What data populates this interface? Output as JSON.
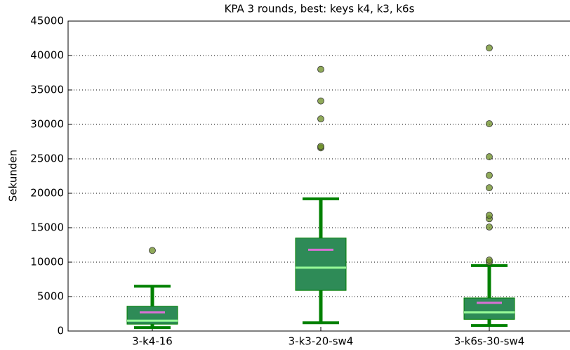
{
  "chart_data": {
    "type": "box",
    "title": "KPA 3 rounds, best: keys k4, k3, k6s",
    "ylabel": "Sekunden",
    "categories": [
      "3-k4-16",
      "3-k3-20-sw4",
      "3-k6s-30-sw4"
    ],
    "boxes": [
      {
        "whislo": 500,
        "q1": 1000,
        "med": 1500,
        "q3": 3600,
        "whishi": 6500,
        "mean": 2700,
        "fliers": [
          11700
        ]
      },
      {
        "whislo": 1200,
        "q1": 5900,
        "med": 9200,
        "q3": 13500,
        "whishi": 19200,
        "mean": 11800,
        "fliers": [
          26600,
          26800,
          30800,
          33400,
          38000
        ]
      },
      {
        "whislo": 800,
        "q1": 1700,
        "med": 2700,
        "q3": 4800,
        "whishi": 9500,
        "mean": 4100,
        "fliers": [
          10000,
          10300,
          15100,
          16300,
          16800,
          20800,
          22600,
          25300,
          30100,
          41100
        ]
      }
    ],
    "box_color": "#2e8b57",
    "whisker_color": "#008000",
    "median_color": "#98fb98",
    "mean_color": "#da70d6",
    "flier_color": "#6b8e23",
    "ylim": [
      0,
      45000
    ],
    "yticks": [
      0,
      5000,
      10000,
      15000,
      20000,
      25000,
      30000,
      35000,
      40000,
      45000
    ],
    "grid": true
  }
}
